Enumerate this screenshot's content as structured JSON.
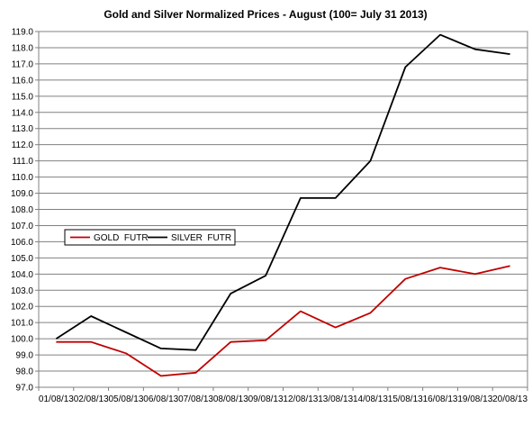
{
  "chart_data": {
    "type": "line",
    "title": "Gold and Silver Normalized Prices - August (100= July 31  2013)",
    "xlabel": "",
    "ylabel": "",
    "categories": [
      "01/08/13",
      "02/08/13",
      "05/08/13",
      "06/08/13",
      "07/08/13",
      "08/08/13",
      "09/08/13",
      "12/08/13",
      "13/08/13",
      "14/08/13",
      "15/08/13",
      "16/08/13",
      "19/08/13",
      "20/08/13"
    ],
    "ylim": [
      97.0,
      119.0
    ],
    "ystep": 1.0,
    "grid": true,
    "legend_position": "left",
    "series": [
      {
        "name": "GOLD  FUTR",
        "color": "#c00000",
        "values": [
          99.8,
          99.8,
          99.1,
          97.7,
          97.9,
          99.8,
          99.9,
          101.7,
          100.7,
          101.6,
          103.7,
          104.4,
          104.0,
          104.5
        ]
      },
      {
        "name": "SILVER  FUTR",
        "color": "#000000",
        "values": [
          100.0,
          101.4,
          100.4,
          99.4,
          99.3,
          102.8,
          103.9,
          108.7,
          108.7,
          111.0,
          116.8,
          118.8,
          117.9,
          117.6
        ]
      }
    ]
  }
}
